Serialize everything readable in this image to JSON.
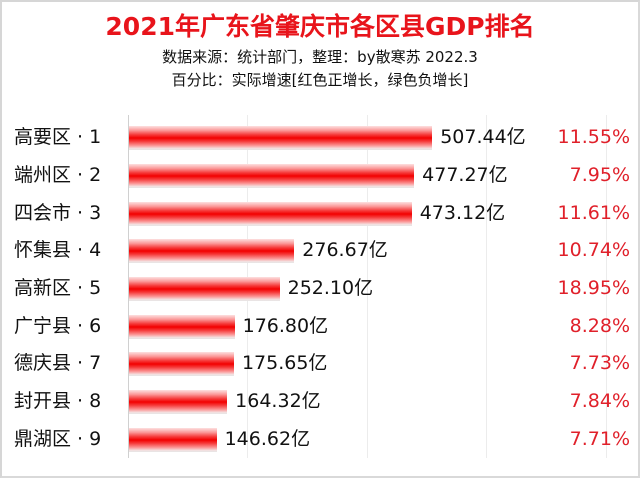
{
  "title": "2021年广东省肇庆市各区县GDP排名",
  "subtitle_source": "数据来源：统计部门，整理：by散寒苏 2022.3",
  "subtitle_note": "百分比：实际增速[红色正增长，绿色负增长]",
  "colors": {
    "title": "#e8141b",
    "bar": "#f20000",
    "positive_growth": "#e0202a",
    "negative_growth": "#00a000",
    "gridline": "#ececec"
  },
  "chart_data": {
    "type": "bar",
    "orientation": "horizontal",
    "title": "2021年广东省肇庆市各区县GDP排名",
    "subtitle": [
      "数据来源：统计部门，整理：by散寒苏 2022.3",
      "百分比：实际增速[红色正增长，绿色负增长]"
    ],
    "categories": [
      "高要区 · 1",
      "端州区 · 2",
      "四会市 · 3",
      "怀集县 · 4",
      "高新区 · 5",
      "广宁县 · 6",
      "德庆县 · 7",
      "封开县 · 8",
      "鼎湖区 · 9"
    ],
    "series": [
      {
        "name": "GDP (亿元)",
        "values": [
          507.44,
          477.27,
          473.12,
          276.67,
          252.1,
          176.8,
          175.65,
          164.32,
          146.62
        ]
      },
      {
        "name": "实际增速 (%)",
        "values": [
          11.55,
          7.95,
          11.61,
          10.74,
          18.95,
          8.28,
          7.73,
          7.84,
          7.71
        ]
      }
    ],
    "xlabel": "",
    "ylabel": "",
    "xlim": [
      0,
      850
    ],
    "grid": true,
    "grid_step": 200,
    "legend": "none"
  },
  "rows": [
    {
      "label": "高要区 · 1",
      "value": 507.44,
      "value_text": "507.44亿",
      "growth_text": "11.55%"
    },
    {
      "label": "端州区 · 2",
      "value": 477.27,
      "value_text": "477.27亿",
      "growth_text": "7.95%"
    },
    {
      "label": "四会市 · 3",
      "value": 473.12,
      "value_text": "473.12亿",
      "growth_text": "11.61%"
    },
    {
      "label": "怀集县 · 4",
      "value": 276.67,
      "value_text": "276.67亿",
      "growth_text": "10.74%"
    },
    {
      "label": "高新区 · 5",
      "value": 252.1,
      "value_text": "252.10亿",
      "growth_text": "18.95%"
    },
    {
      "label": "广宁县 · 6",
      "value": 176.8,
      "value_text": "176.80亿",
      "growth_text": "8.28%"
    },
    {
      "label": "德庆县 · 7",
      "value": 175.65,
      "value_text": "175.65亿",
      "growth_text": "7.73%"
    },
    {
      "label": "封开县 · 8",
      "value": 164.32,
      "value_text": "164.32亿",
      "growth_text": "7.84%"
    },
    {
      "label": "鼎湖区 · 9",
      "value": 146.62,
      "value_text": "146.62亿",
      "growth_text": "7.71%"
    }
  ]
}
